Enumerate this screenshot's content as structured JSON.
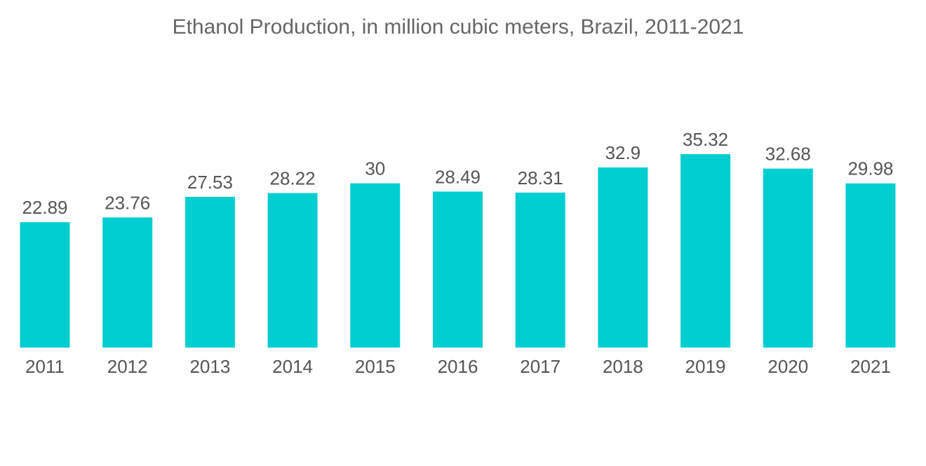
{
  "chart_data": {
    "type": "bar",
    "title": "Ethanol Production, in million cubic meters, Brazil, 2011-2021",
    "categories": [
      "2011",
      "2012",
      "2013",
      "2014",
      "2015",
      "2016",
      "2017",
      "2018",
      "2019",
      "2020",
      "2021"
    ],
    "values": [
      22.89,
      23.76,
      27.53,
      28.22,
      30,
      28.49,
      28.31,
      32.9,
      35.32,
      32.68,
      29.98
    ],
    "value_labels": [
      "22.89",
      "23.76",
      "27.53",
      "28.22",
      "30",
      "28.49",
      "28.31",
      "32.9",
      "35.32",
      "32.68",
      "29.98"
    ],
    "xlabel": "",
    "ylabel": "",
    "ylim": [
      0,
      35.32
    ],
    "grid": false,
    "legend": "none",
    "bar_color": "#00ced1"
  }
}
